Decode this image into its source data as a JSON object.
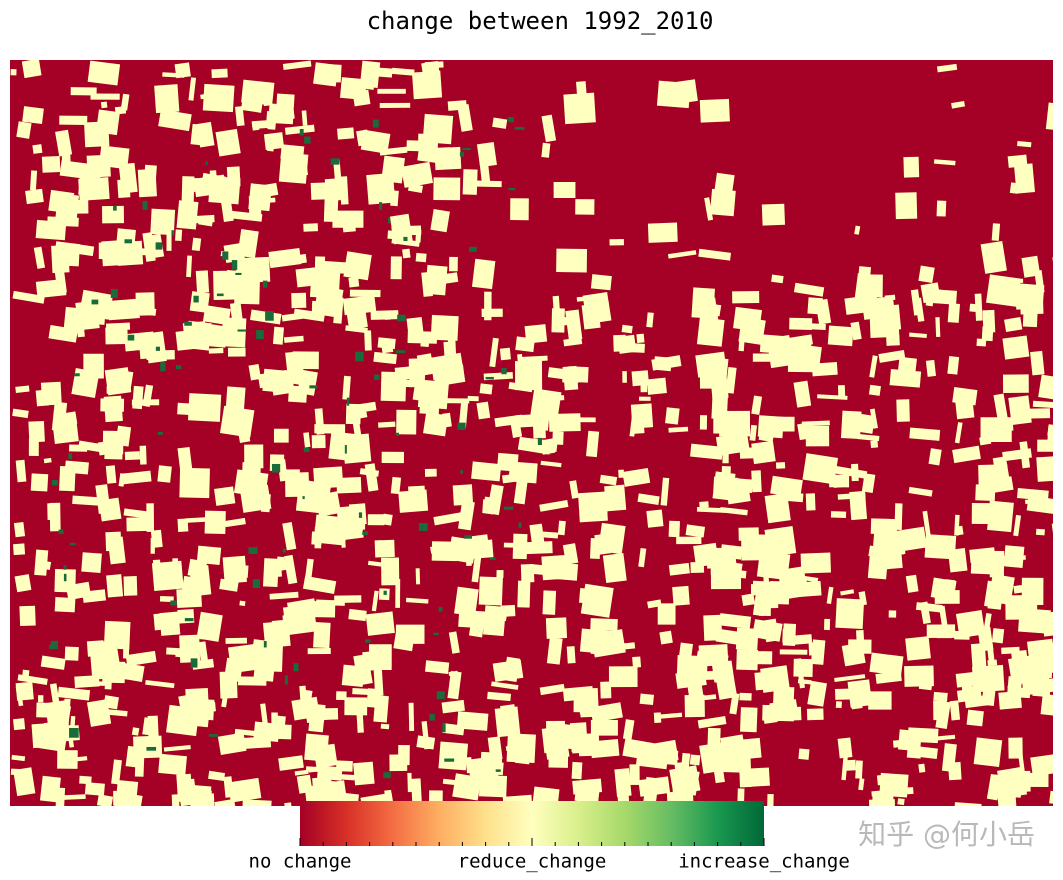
{
  "title": "change between 1992_2010",
  "colorbar": {
    "labels": [
      "no change",
      "reduce_change",
      "increase_change"
    ]
  },
  "watermark": "知乎 @何小岳"
}
